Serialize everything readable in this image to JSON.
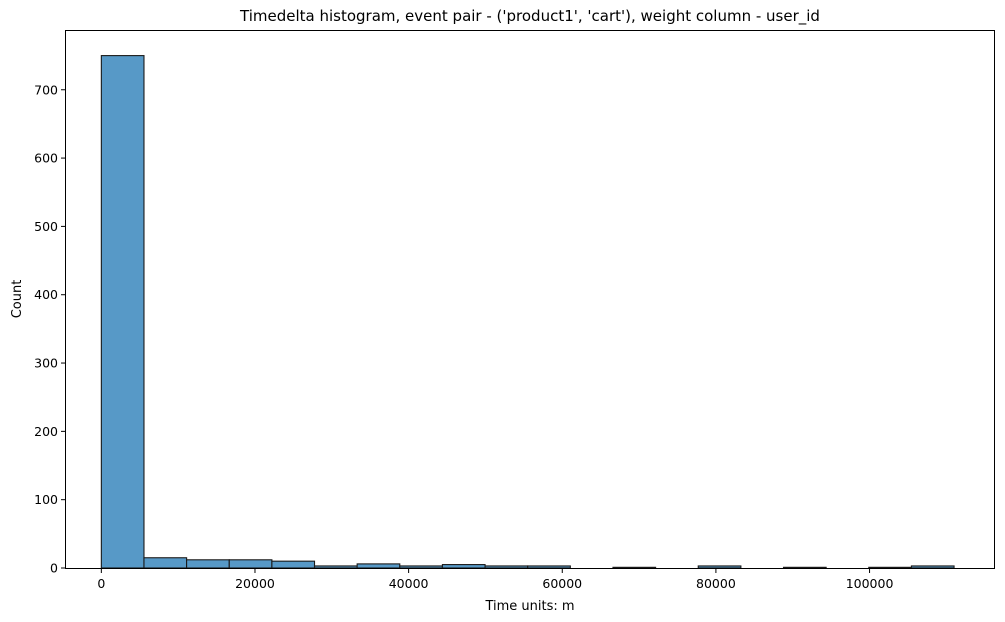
{
  "chart_data": {
    "type": "bar",
    "title": "Timedelta histogram, event pair - ('product1', 'cart'), weight column - user_id",
    "xlabel": "Time units: m",
    "ylabel": "Count",
    "xlim": [
      -4600,
      116200
    ],
    "ylim": [
      0,
      786
    ],
    "xticks": [
      0,
      20000,
      40000,
      60000,
      80000,
      100000
    ],
    "xtick_labels": [
      "0",
      "20000",
      "40000",
      "60000",
      "80000",
      "100000"
    ],
    "yticks": [
      0,
      100,
      200,
      300,
      400,
      500,
      600,
      700
    ],
    "ytick_labels": [
      "0",
      "100",
      "200",
      "300",
      "400",
      "500",
      "600",
      "700"
    ],
    "bin_edges": [
      0,
      5550,
      11100,
      16650,
      22200,
      27750,
      33300,
      38850,
      44400,
      49950,
      55500,
      61050,
      66600,
      72150,
      77700,
      83250,
      88800,
      94350,
      99900,
      105450,
      111000
    ],
    "counts": [
      750,
      15,
      12,
      12,
      10,
      3,
      6,
      3,
      5,
      3,
      3,
      0,
      1,
      0,
      3,
      0,
      1,
      0,
      1,
      3
    ],
    "bar_color": "#5799c7",
    "edge_color": "#1a1a1a",
    "grid": false,
    "legend": "none"
  }
}
